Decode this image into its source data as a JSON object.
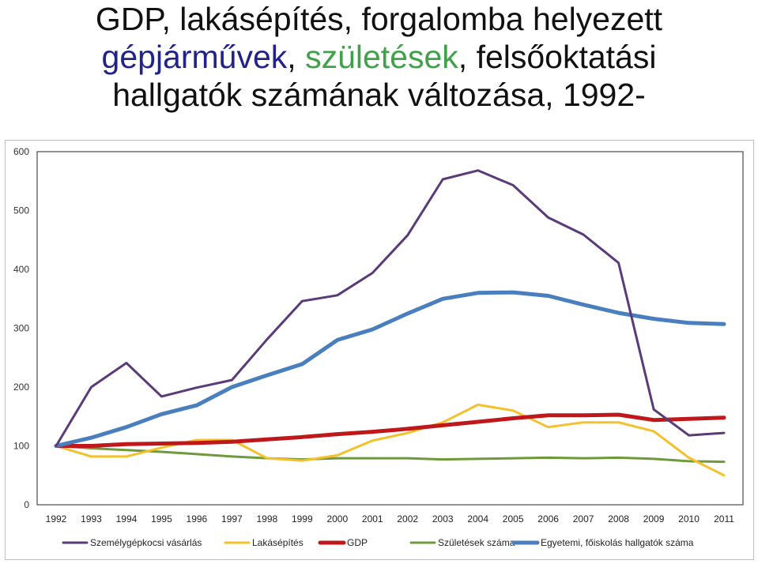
{
  "title": {
    "line1": "GDP, lakásépítés, forgalomba helyezett",
    "line2_part1": "gépjárművek",
    "line2_part2": ", ",
    "line2_part3": "születések",
    "line2_part4": ", felsőoktatási",
    "line3": "hallgatók számának változása, 1992-"
  },
  "colors": {
    "title_blue": "#22238a",
    "title_green": "#3fa14a"
  },
  "chart_data": {
    "type": "line",
    "categories": [
      "1992",
      "1993",
      "1994",
      "1995",
      "1996",
      "1997",
      "1998",
      "1999",
      "2000",
      "2001",
      "2002",
      "2003",
      "2004",
      "2005",
      "2006",
      "2007",
      "2008",
      "2009",
      "2010",
      "2011"
    ],
    "ylim": [
      0,
      600
    ],
    "yticks": [
      "0",
      "100",
      "200",
      "300",
      "400",
      "500",
      "600"
    ],
    "grid": false,
    "legend_position": "bottom",
    "series": [
      {
        "name": "Személygépkocsi vásárlás",
        "color": "#5b3a7a",
        "width": 3,
        "values": [
          100,
          200,
          241,
          184,
          199,
          212,
          281,
          346,
          356,
          394,
          458,
          553,
          568,
          543,
          488,
          459,
          411,
          162,
          118,
          122
        ]
      },
      {
        "name": "Lakásépítés",
        "color": "#f5c12a",
        "width": 3,
        "values": [
          100,
          82,
          82,
          97,
          110,
          110,
          79,
          75,
          84,
          109,
          122,
          140,
          170,
          160,
          132,
          140,
          140,
          125,
          80,
          50
        ]
      },
      {
        "name": "GDP",
        "color": "#c0181a",
        "width": 5,
        "values": [
          100,
          100,
          103,
          104,
          105,
          107,
          111,
          115,
          120,
          124,
          129,
          135,
          141,
          147,
          152,
          152,
          153,
          144,
          146,
          148
        ]
      },
      {
        "name": "Születések száma",
        "color": "#6f9a3c",
        "width": 3,
        "values": [
          100,
          96,
          93,
          90,
          86,
          82,
          79,
          77,
          79,
          79,
          79,
          77,
          78,
          79,
          80,
          79,
          80,
          78,
          74,
          73
        ]
      },
      {
        "name": "Egyetemi, főiskolás hallgatók száma",
        "color": "#4a7fbf",
        "width": 5,
        "values": [
          100,
          114,
          132,
          154,
          169,
          200,
          220,
          239,
          280,
          298,
          325,
          350,
          360,
          361,
          355,
          340,
          326,
          316,
          309,
          307
        ]
      }
    ]
  }
}
